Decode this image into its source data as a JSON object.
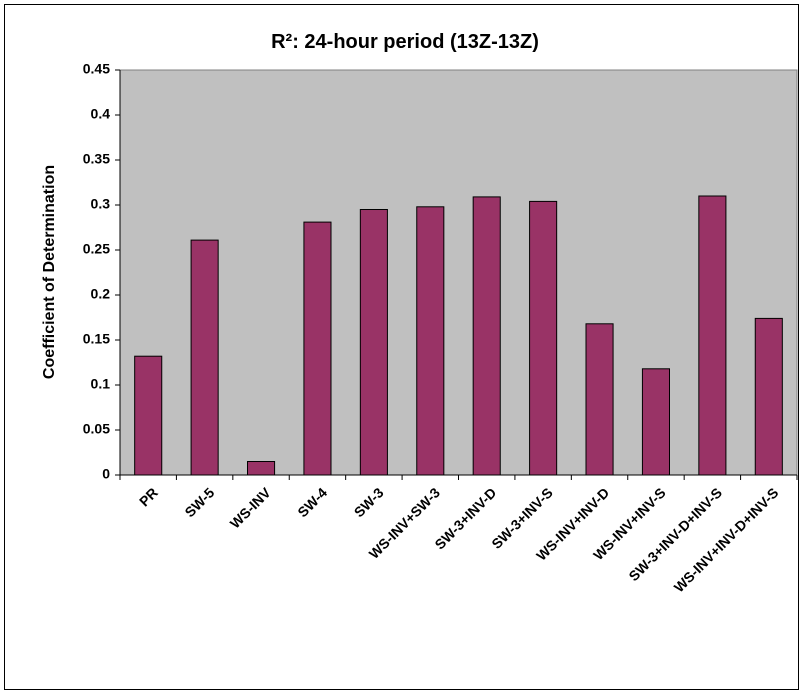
{
  "chart_data": {
    "type": "bar",
    "title": "R²: 24-hour period (13Z-13Z)",
    "y_label": "Coefficient of Determination",
    "categories": [
      "PR",
      "SW-5",
      "WS-INV",
      "SW-4",
      "SW-3",
      "WS-INV+SW-3",
      "SW-3+INV-D",
      "SW-3+INV-S",
      "WS-INV+INV-D",
      "WS-INV+INV-S",
      "SW-3+INV-D+INV-S",
      "WS-INV+INV-D+INV-S"
    ],
    "values": [
      0.132,
      0.261,
      0.015,
      0.281,
      0.295,
      0.298,
      0.309,
      0.304,
      0.168,
      0.118,
      0.31,
      0.174
    ],
    "color": "#993366",
    "ylim": [
      0,
      0.45
    ],
    "yticks": [
      0,
      0.05,
      0.1,
      0.15,
      0.2,
      0.25,
      0.3,
      0.35,
      0.4,
      0.45
    ],
    "grid": false
  }
}
